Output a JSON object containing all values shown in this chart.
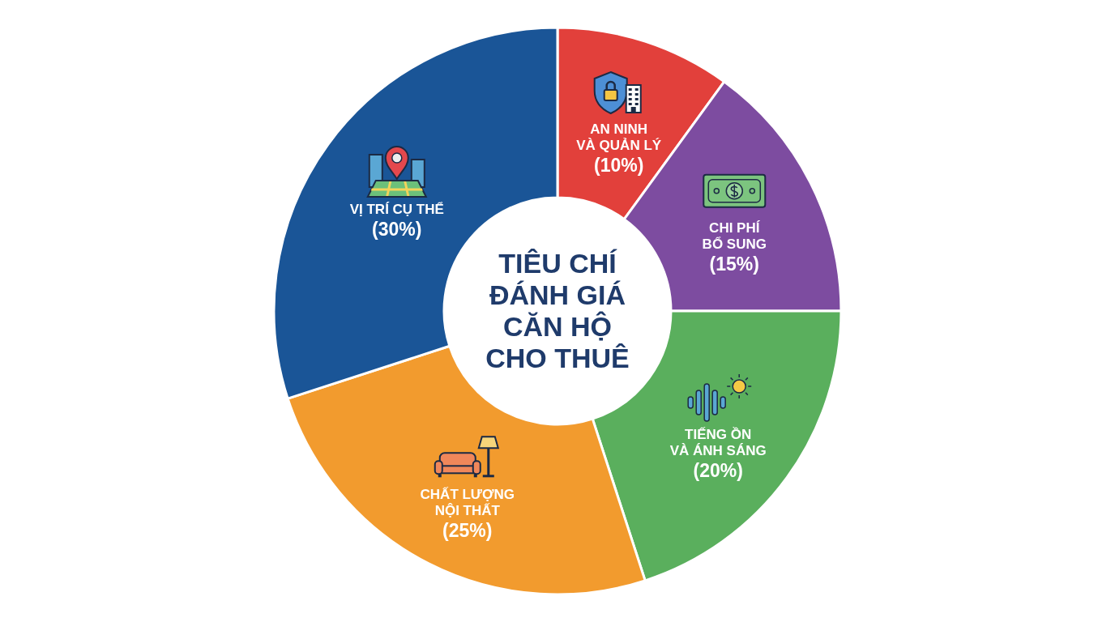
{
  "chart_data": {
    "type": "donut",
    "title": "TIÊU CHÍ ĐÁNH GIÁ CĂN HỘ CHO THUÊ",
    "categories": [
      "AN NINH VÀ QUẢN LÝ",
      "CHI PHÍ BỔ SUNG",
      "TIẾNG ỒN VÀ ÁNH SÁNG",
      "CHẤT LƯỢNG NỘI THẤT",
      "VỊ TRÍ CỤ THỂ"
    ],
    "values": [
      10,
      15,
      20,
      25,
      30
    ],
    "colors": [
      "#e2403b",
      "#7d4ca0",
      "#5aaf5d",
      "#f29b2e",
      "#1a5597"
    ],
    "value_labels": [
      "(10%)",
      "(15%)",
      "(20%)",
      "(25%)",
      "(30%)"
    ]
  }
}
